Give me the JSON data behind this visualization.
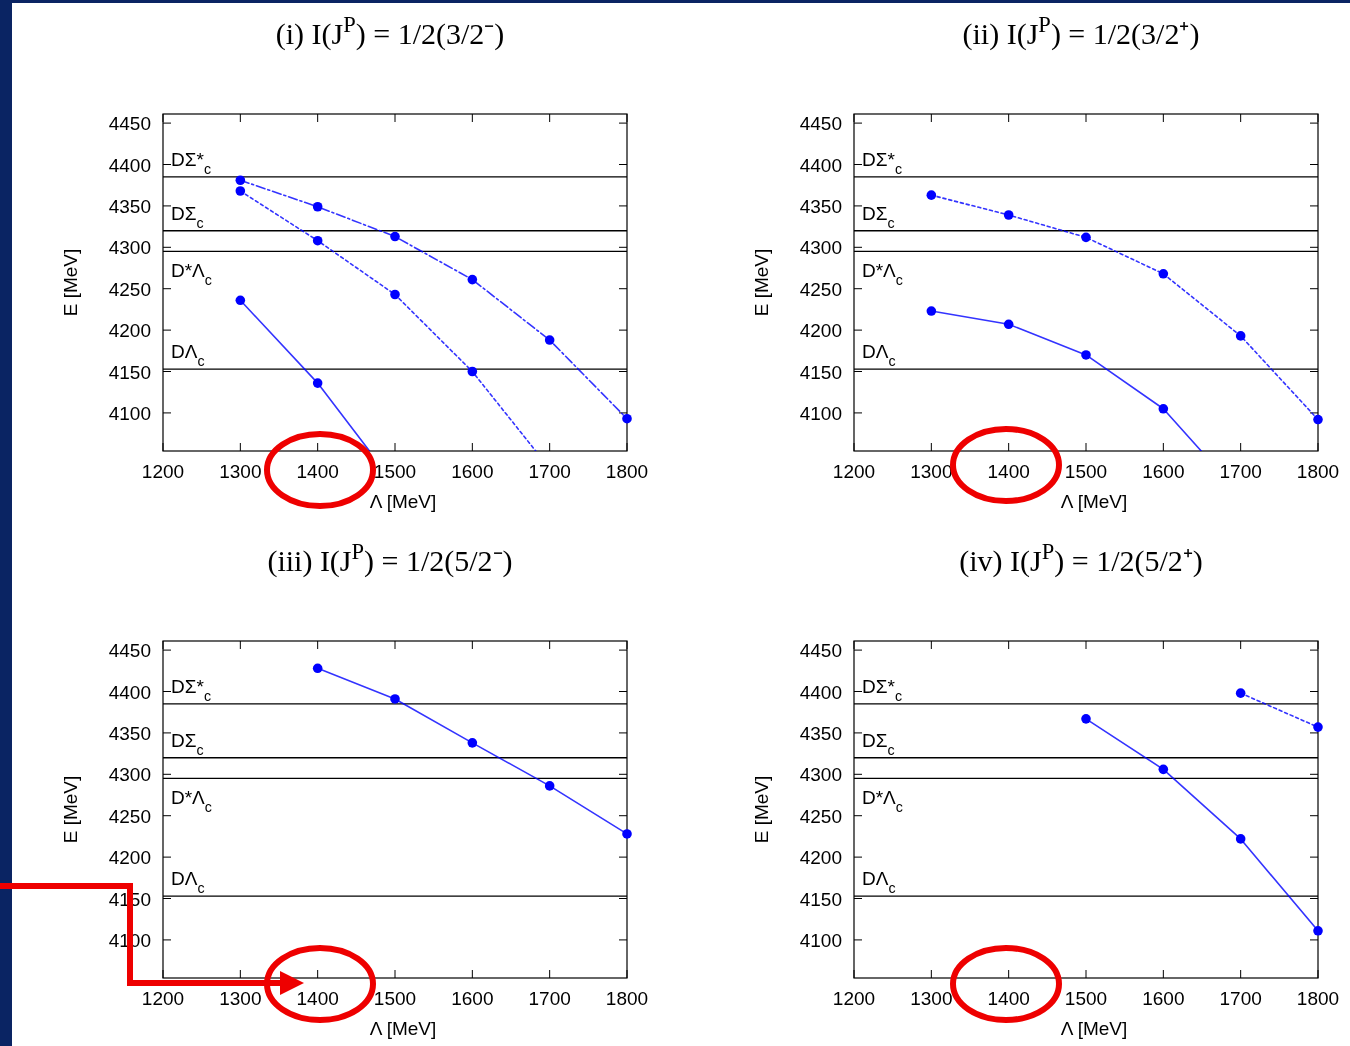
{
  "chart_data": [
    {
      "type": "line",
      "title": "(i) I(J$^{P}$) = 1/2(3/2⁻)",
      "xlabel": "Λ [MeV]",
      "ylabel": "E [MeV]",
      "xlim": [
        1200,
        1800
      ],
      "ylim": [
        4054,
        4461
      ],
      "xticks": [
        1200,
        1300,
        1400,
        1500,
        1600,
        1700,
        1800
      ],
      "yticks": [
        4100,
        4150,
        4200,
        4250,
        4300,
        4350,
        4400,
        4450
      ],
      "grid": false,
      "marker": "circle",
      "ref_lines": [
        {
          "axis": "y",
          "value": 4385,
          "label": "DΣ*$_{c}$",
          "color": "#000000"
        },
        {
          "axis": "y",
          "value": 4320,
          "label": "DΣ$_{c}$",
          "color": "#000000"
        },
        {
          "axis": "y",
          "value": 4295,
          "label": "D*Λ$_{c}$",
          "color": "#000000"
        },
        {
          "axis": "y",
          "value": 4153,
          "label": "DΛ$_{c}$",
          "color": "#000000"
        }
      ],
      "series": [
        {
          "color": "#0000ff",
          "line_style": "solid",
          "x": [
            1300,
            1400,
            1467
          ],
          "values": [
            4236,
            4136,
            4054
          ]
        },
        {
          "color": "#0000ff",
          "line_style": "dotted",
          "x": [
            1300,
            1400,
            1500,
            1600,
            1682
          ],
          "values": [
            4368,
            4308,
            4243,
            4150,
            4054
          ]
        },
        {
          "color": "#0000ff",
          "line_style": "dashed",
          "x": [
            1300,
            1400,
            1500,
            1600,
            1700,
            1800
          ],
          "values": [
            4381,
            4349,
            4313,
            4261,
            4188,
            4093
          ]
        }
      ]
    },
    {
      "type": "line",
      "title": "(ii) I(J$^{P}$) = 1/2(3/2⁺)",
      "xlabel": "Λ [MeV]",
      "ylabel": "E [MeV]",
      "xlim": [
        1200,
        1800
      ],
      "ylim": [
        4054,
        4461
      ],
      "xticks": [
        1200,
        1300,
        1400,
        1500,
        1600,
        1700,
        1800
      ],
      "yticks": [
        4100,
        4150,
        4200,
        4250,
        4300,
        4350,
        4400,
        4450
      ],
      "grid": false,
      "marker": "circle",
      "ref_lines": [
        {
          "axis": "y",
          "value": 4385,
          "label": "DΣ*$_{c}$",
          "color": "#000000"
        },
        {
          "axis": "y",
          "value": 4320,
          "label": "DΣ$_{c}$",
          "color": "#000000"
        },
        {
          "axis": "y",
          "value": 4295,
          "label": "D*Λ$_{c}$",
          "color": "#000000"
        },
        {
          "axis": "y",
          "value": 4153,
          "label": "DΛ$_{c}$",
          "color": "#000000"
        }
      ],
      "series": [
        {
          "color": "#0000ff",
          "line_style": "solid",
          "x": [
            1300,
            1400,
            1500,
            1600,
            1649
          ],
          "values": [
            4223,
            4207,
            4170,
            4105,
            4054
          ]
        },
        {
          "color": "#0000ff",
          "line_style": "dotted",
          "x": [
            1300,
            1400,
            1500,
            1600,
            1700,
            1800
          ],
          "values": [
            4363,
            4339,
            4312,
            4268,
            4193,
            4092
          ]
        }
      ]
    },
    {
      "type": "line",
      "title": "(iii) I(J$^{P}$) = 1/2(5/2⁻)",
      "xlabel": "Λ [MeV]",
      "ylabel": "E [MeV]",
      "xlim": [
        1200,
        1800
      ],
      "ylim": [
        4054,
        4461
      ],
      "xticks": [
        1200,
        1300,
        1400,
        1500,
        1600,
        1700,
        1800
      ],
      "yticks": [
        4100,
        4150,
        4200,
        4250,
        4300,
        4350,
        4400,
        4450
      ],
      "grid": false,
      "marker": "circle",
      "ref_lines": [
        {
          "axis": "y",
          "value": 4385,
          "label": "DΣ*$_{c}$",
          "color": "#000000"
        },
        {
          "axis": "y",
          "value": 4320,
          "label": "DΣ$_{c}$",
          "color": "#000000"
        },
        {
          "axis": "y",
          "value": 4295,
          "label": "D*Λ$_{c}$",
          "color": "#000000"
        },
        {
          "axis": "y",
          "value": 4153,
          "label": "DΛ$_{c}$",
          "color": "#000000"
        }
      ],
      "series": [
        {
          "color": "#0000ff",
          "line_style": "solid",
          "x": [
            1400,
            1500,
            1600,
            1700,
            1800
          ],
          "values": [
            4428,
            4391,
            4338,
            4286,
            4228
          ]
        }
      ]
    },
    {
      "type": "line",
      "title": "(iv) I(J$^{P}$) = 1/2(5/2⁺)",
      "xlabel": "Λ [MeV]",
      "ylabel": "E [MeV]",
      "xlim": [
        1200,
        1800
      ],
      "ylim": [
        4054,
        4461
      ],
      "xticks": [
        1200,
        1300,
        1400,
        1500,
        1600,
        1700,
        1800
      ],
      "yticks": [
        4100,
        4150,
        4200,
        4250,
        4300,
        4350,
        4400,
        4450
      ],
      "grid": false,
      "marker": "circle",
      "ref_lines": [
        {
          "axis": "y",
          "value": 4385,
          "label": "DΣ*$_{c}$",
          "color": "#000000"
        },
        {
          "axis": "y",
          "value": 4320,
          "label": "DΣ$_{c}$",
          "color": "#000000"
        },
        {
          "axis": "y",
          "value": 4295,
          "label": "D*Λ$_{c}$",
          "color": "#000000"
        },
        {
          "axis": "y",
          "value": 4153,
          "label": "DΛ$_{c}$",
          "color": "#000000"
        }
      ],
      "series": [
        {
          "color": "#0000ff",
          "line_style": "solid",
          "x": [
            1500,
            1600,
            1700,
            1800
          ],
          "values": [
            4367,
            4306,
            4222,
            4111
          ]
        },
        {
          "color": "#0000ff",
          "line_style": "dotted",
          "x": [
            1700,
            1800
          ],
          "values": [
            4398,
            4357
          ]
        }
      ]
    }
  ]
}
